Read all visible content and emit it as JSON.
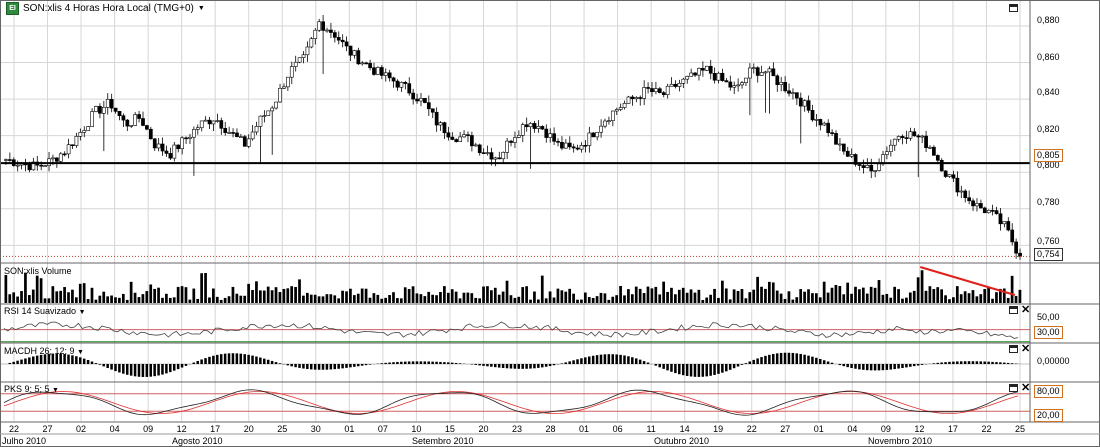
{
  "header": {
    "icon_label": "EI",
    "title": "SON:xlis 4 Horas Hora Local (TMG+0)"
  },
  "panels": {
    "volume": {
      "title": "SON:xlis Volume"
    },
    "rsi": {
      "title": "RSI 14 Suavizado",
      "levels": [
        "50,00",
        "30,00"
      ]
    },
    "macdh": {
      "title": "MACDH 26; 12; 9",
      "zero_label": "0,00000"
    },
    "pks": {
      "title": "PKS 9; 5; 5",
      "levels": [
        "80,00",
        "20,00"
      ]
    }
  },
  "colors": {
    "grid": "#d6d6d6",
    "candle_up": "#ffffff",
    "candle_down": "#000000",
    "support": "#000000",
    "last_price": "#c0392b",
    "trend": "#e0201a",
    "rsi_level_high": "#d06060",
    "rsi_level_low": "#2a8a2a",
    "pks_red": "#e03030",
    "pks_black": "#222222"
  },
  "chart_data": {
    "type": "candlestick",
    "symbol": "SON:xlis",
    "period": "4 Horas",
    "y_axis_labels": [
      "0,880",
      "0,860",
      "0,840",
      "0,820",
      "0,800",
      "0,780",
      "0,760"
    ],
    "ylim": [
      0.752,
      0.892
    ],
    "support_level": 0.805,
    "support_label": "0,805",
    "last_price": 0.754,
    "last_price_label": "0,754",
    "x_day_labels": [
      "22",
      "27",
      "02",
      "04",
      "09",
      "12",
      "17",
      "20",
      "25",
      "30",
      "01",
      "07",
      "10",
      "15",
      "20",
      "23",
      "28",
      "01",
      "06",
      "11",
      "14",
      "19",
      "22",
      "27",
      "01",
      "04",
      "09",
      "12",
      "17",
      "22",
      "25"
    ],
    "x_month_labels": [
      "Julho 2010",
      "Agosto 2010",
      "Setembro 2010",
      "Outubro 2010",
      "Novembro 2010"
    ],
    "close_keypoints": [
      [
        0.807
      ],
      [
        0.805
      ],
      [
        0.803
      ],
      [
        0.806
      ],
      [
        0.812
      ],
      [
        0.822
      ],
      [
        0.833
      ],
      [
        0.838
      ],
      [
        0.826
      ],
      [
        0.83
      ],
      [
        0.815
      ],
      [
        0.81
      ],
      [
        0.818
      ],
      [
        0.826
      ],
      [
        0.83
      ],
      [
        0.822
      ],
      [
        0.815
      ],
      [
        0.828
      ],
      [
        0.838
      ],
      [
        0.855
      ],
      [
        0.862
      ],
      [
        0.882
      ],
      [
        0.876
      ],
      [
        0.866
      ],
      [
        0.86
      ],
      [
        0.854
      ],
      [
        0.85
      ],
      [
        0.845
      ],
      [
        0.838
      ],
      [
        0.826
      ],
      [
        0.82
      ],
      [
        0.818
      ],
      [
        0.812
      ],
      [
        0.808
      ],
      [
        0.82
      ],
      [
        0.828
      ],
      [
        0.824
      ],
      [
        0.815
      ],
      [
        0.812
      ],
      [
        0.818
      ],
      [
        0.828
      ],
      [
        0.835
      ],
      [
        0.84
      ],
      [
        0.845
      ],
      [
        0.842
      ],
      [
        0.848
      ],
      [
        0.852
      ],
      [
        0.856
      ],
      [
        0.85
      ],
      [
        0.845
      ],
      [
        0.856
      ],
      [
        0.855
      ],
      [
        0.848
      ],
      [
        0.842
      ],
      [
        0.832
      ],
      [
        0.825
      ],
      [
        0.812
      ],
      [
        0.806
      ],
      [
        0.8
      ],
      [
        0.812
      ],
      [
        0.822
      ],
      [
        0.82
      ],
      [
        0.814
      ],
      [
        0.8
      ],
      [
        0.79
      ],
      [
        0.782
      ],
      [
        0.778
      ],
      [
        0.77
      ],
      [
        0.754
      ]
    ],
    "volume_trend_line": {
      "from_index": 0.9,
      "to_index": 0.993
    }
  }
}
